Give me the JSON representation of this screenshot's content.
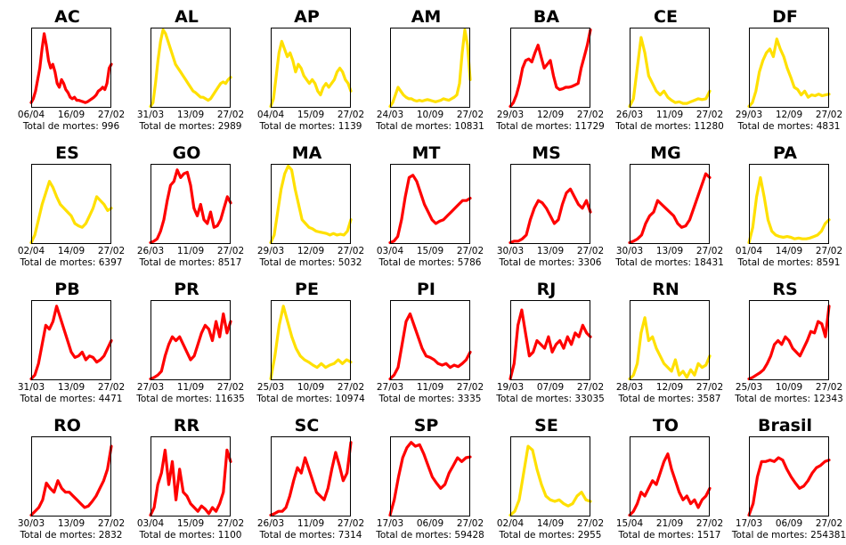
{
  "chart_data": {
    "type": "line",
    "total_prefix": "Total de mortes: ",
    "colors": {
      "red": "#ff0000",
      "yellow": "#ffe000"
    },
    "panels": [
      {
        "title": "AC",
        "xticks": [
          "06/04",
          "16/09",
          "27/02"
        ],
        "total": "996",
        "color": "red",
        "y": [
          0.05,
          0.1,
          0.2,
          0.35,
          0.5,
          0.75,
          0.95,
          0.8,
          0.6,
          0.5,
          0.55,
          0.45,
          0.3,
          0.25,
          0.35,
          0.3,
          0.22,
          0.18,
          0.12,
          0.1,
          0.12,
          0.08,
          0.08,
          0.07,
          0.06,
          0.05,
          0.06,
          0.08,
          0.1,
          0.12,
          0.15,
          0.2,
          0.22,
          0.25,
          0.22,
          0.3,
          0.5,
          0.55
        ]
      },
      {
        "title": "AL",
        "xticks": [
          "31/03",
          "13/09",
          "27/02"
        ],
        "total": "2989",
        "color": "yellow",
        "y": [
          0.0,
          0.05,
          0.3,
          0.6,
          0.85,
          1.0,
          0.95,
          0.85,
          0.75,
          0.65,
          0.55,
          0.5,
          0.45,
          0.4,
          0.35,
          0.3,
          0.25,
          0.2,
          0.18,
          0.15,
          0.12,
          0.12,
          0.1,
          0.08,
          0.1,
          0.15,
          0.2,
          0.25,
          0.3,
          0.32,
          0.3,
          0.35,
          0.38
        ]
      },
      {
        "title": "AP",
        "xticks": [
          "04/04",
          "15/09",
          "27/02"
        ],
        "total": "1139",
        "color": "yellow",
        "y": [
          0.0,
          0.1,
          0.4,
          0.7,
          0.85,
          0.75,
          0.65,
          0.7,
          0.6,
          0.45,
          0.55,
          0.5,
          0.4,
          0.35,
          0.3,
          0.35,
          0.3,
          0.2,
          0.15,
          0.25,
          0.3,
          0.25,
          0.3,
          0.35,
          0.45,
          0.5,
          0.45,
          0.35,
          0.3,
          0.2
        ]
      },
      {
        "title": "AM",
        "xticks": [
          "24/03",
          "10/09",
          "27/02"
        ],
        "total": "10831",
        "color": "yellow",
        "y": [
          0.0,
          0.05,
          0.15,
          0.25,
          0.2,
          0.15,
          0.12,
          0.1,
          0.1,
          0.08,
          0.07,
          0.08,
          0.07,
          0.08,
          0.09,
          0.08,
          0.07,
          0.06,
          0.07,
          0.08,
          0.1,
          0.09,
          0.08,
          0.1,
          0.12,
          0.15,
          0.3,
          0.7,
          1.0,
          0.8,
          0.35
        ]
      },
      {
        "title": "BA",
        "xticks": [
          "29/03",
          "12/09",
          "27/02"
        ],
        "total": "11729",
        "color": "red",
        "y": [
          0.0,
          0.05,
          0.15,
          0.3,
          0.5,
          0.6,
          0.62,
          0.58,
          0.7,
          0.8,
          0.65,
          0.5,
          0.55,
          0.6,
          0.4,
          0.25,
          0.22,
          0.23,
          0.25,
          0.25,
          0.26,
          0.28,
          0.3,
          0.5,
          0.65,
          0.8,
          1.0
        ]
      },
      {
        "title": "CE",
        "xticks": [
          "26/03",
          "11/09",
          "27/02"
        ],
        "total": "11280",
        "color": "yellow",
        "y": [
          0.0,
          0.1,
          0.5,
          0.9,
          0.7,
          0.4,
          0.3,
          0.2,
          0.15,
          0.2,
          0.12,
          0.08,
          0.05,
          0.06,
          0.04,
          0.04,
          0.06,
          0.08,
          0.1,
          0.09,
          0.1,
          0.2
        ]
      },
      {
        "title": "DF",
        "xticks": [
          "29/03",
          "12/09",
          "27/02"
        ],
        "total": "4831",
        "color": "yellow",
        "y": [
          0.0,
          0.05,
          0.2,
          0.45,
          0.6,
          0.7,
          0.75,
          0.65,
          0.88,
          0.75,
          0.65,
          0.5,
          0.38,
          0.25,
          0.22,
          0.15,
          0.2,
          0.12,
          0.15,
          0.14,
          0.16,
          0.14,
          0.15,
          0.16
        ]
      },
      {
        "title": "ES",
        "xticks": [
          "02/04",
          "14/09",
          "27/02"
        ],
        "total": "6397",
        "color": "yellow",
        "y": [
          0.0,
          0.1,
          0.3,
          0.5,
          0.65,
          0.8,
          0.72,
          0.6,
          0.5,
          0.45,
          0.4,
          0.35,
          0.25,
          0.22,
          0.2,
          0.25,
          0.35,
          0.45,
          0.6,
          0.55,
          0.5,
          0.42,
          0.45
        ]
      },
      {
        "title": "GO",
        "xticks": [
          "26/03",
          "11/09",
          "27/02"
        ],
        "total": "8517",
        "color": "red",
        "y": [
          0.0,
          0.02,
          0.05,
          0.15,
          0.3,
          0.55,
          0.75,
          0.8,
          0.95,
          0.85,
          0.9,
          0.92,
          0.75,
          0.45,
          0.35,
          0.5,
          0.3,
          0.25,
          0.4,
          0.2,
          0.22,
          0.3,
          0.45,
          0.6,
          0.52
        ]
      },
      {
        "title": "MA",
        "xticks": [
          "29/03",
          "12/09",
          "27/02"
        ],
        "total": "5032",
        "color": "yellow",
        "y": [
          0.0,
          0.1,
          0.4,
          0.7,
          0.9,
          1.0,
          0.95,
          0.7,
          0.5,
          0.3,
          0.25,
          0.2,
          0.18,
          0.15,
          0.14,
          0.13,
          0.12,
          0.1,
          0.12,
          0.1,
          0.11,
          0.1,
          0.15,
          0.3
        ]
      },
      {
        "title": "MT",
        "xticks": [
          "03/04",
          "15/09",
          "27/02"
        ],
        "total": "5786",
        "color": "red",
        "y": [
          0.0,
          0.02,
          0.08,
          0.3,
          0.6,
          0.85,
          0.88,
          0.8,
          0.65,
          0.5,
          0.4,
          0.3,
          0.25,
          0.28,
          0.3,
          0.35,
          0.4,
          0.45,
          0.5,
          0.55,
          0.55,
          0.58
        ]
      },
      {
        "title": "MS",
        "xticks": [
          "30/03",
          "13/09",
          "27/02"
        ],
        "total": "3306",
        "color": "red",
        "y": [
          0.0,
          0.02,
          0.02,
          0.05,
          0.1,
          0.3,
          0.45,
          0.55,
          0.52,
          0.45,
          0.35,
          0.25,
          0.3,
          0.5,
          0.65,
          0.7,
          0.6,
          0.5,
          0.45,
          0.55,
          0.4
        ]
      },
      {
        "title": "MG",
        "xticks": [
          "30/03",
          "13/09",
          "27/02"
        ],
        "total": "18431",
        "color": "red",
        "y": [
          0.0,
          0.02,
          0.05,
          0.1,
          0.25,
          0.35,
          0.4,
          0.55,
          0.5,
          0.45,
          0.4,
          0.35,
          0.25,
          0.2,
          0.22,
          0.3,
          0.45,
          0.6,
          0.75,
          0.9,
          0.85
        ]
      },
      {
        "title": "PA",
        "xticks": [
          "01/04",
          "14/09",
          "27/02"
        ],
        "total": "8591",
        "color": "yellow",
        "y": [
          0.0,
          0.2,
          0.6,
          0.85,
          0.6,
          0.3,
          0.15,
          0.1,
          0.08,
          0.07,
          0.08,
          0.07,
          0.05,
          0.06,
          0.05,
          0.05,
          0.06,
          0.08,
          0.1,
          0.15,
          0.25,
          0.3
        ]
      },
      {
        "title": "PB",
        "xticks": [
          "31/03",
          "13/09",
          "27/02"
        ],
        "total": "4471",
        "color": "red",
        "y": [
          0.0,
          0.05,
          0.2,
          0.45,
          0.7,
          0.65,
          0.75,
          0.95,
          0.8,
          0.65,
          0.5,
          0.35,
          0.28,
          0.3,
          0.35,
          0.25,
          0.3,
          0.28,
          0.22,
          0.25,
          0.3,
          0.4,
          0.5
        ]
      },
      {
        "title": "PR",
        "xticks": [
          "27/03",
          "11/09",
          "27/02"
        ],
        "total": "11635",
        "color": "red",
        "y": [
          0.0,
          0.02,
          0.05,
          0.1,
          0.3,
          0.45,
          0.55,
          0.5,
          0.55,
          0.45,
          0.35,
          0.25,
          0.3,
          0.45,
          0.6,
          0.7,
          0.65,
          0.5,
          0.75,
          0.55,
          0.85,
          0.6,
          0.75
        ]
      },
      {
        "title": "PE",
        "xticks": [
          "25/03",
          "10/09",
          "27/02"
        ],
        "total": "10974",
        "color": "yellow",
        "y": [
          0.0,
          0.3,
          0.7,
          0.95,
          0.75,
          0.55,
          0.4,
          0.3,
          0.25,
          0.22,
          0.18,
          0.15,
          0.2,
          0.15,
          0.18,
          0.2,
          0.25,
          0.2,
          0.25,
          0.22
        ]
      },
      {
        "title": "PI",
        "xticks": [
          "27/03",
          "11/09",
          "27/02"
        ],
        "total": "3335",
        "color": "red",
        "y": [
          0.0,
          0.05,
          0.15,
          0.45,
          0.75,
          0.85,
          0.7,
          0.55,
          0.4,
          0.3,
          0.28,
          0.25,
          0.2,
          0.18,
          0.2,
          0.15,
          0.18,
          0.16,
          0.2,
          0.25,
          0.35
        ]
      },
      {
        "title": "RJ",
        "xticks": [
          "19/03",
          "07/09",
          "27/02"
        ],
        "total": "33035",
        "color": "red",
        "y": [
          0.0,
          0.2,
          0.7,
          0.9,
          0.6,
          0.3,
          0.35,
          0.5,
          0.45,
          0.4,
          0.55,
          0.35,
          0.45,
          0.5,
          0.4,
          0.55,
          0.45,
          0.6,
          0.55,
          0.7,
          0.6,
          0.55
        ]
      },
      {
        "title": "RN",
        "xticks": [
          "28/03",
          "12/09",
          "27/02"
        ],
        "total": "3587",
        "color": "yellow",
        "y": [
          0.0,
          0.05,
          0.2,
          0.6,
          0.8,
          0.5,
          0.55,
          0.4,
          0.3,
          0.2,
          0.15,
          0.1,
          0.25,
          0.05,
          0.1,
          0.02,
          0.12,
          0.05,
          0.2,
          0.15,
          0.18,
          0.3
        ]
      },
      {
        "title": "RS",
        "xticks": [
          "25/03",
          "10/09",
          "27/02"
        ],
        "total": "12343",
        "color": "red",
        "y": [
          0.0,
          0.02,
          0.05,
          0.08,
          0.12,
          0.2,
          0.3,
          0.45,
          0.5,
          0.45,
          0.55,
          0.5,
          0.4,
          0.35,
          0.3,
          0.4,
          0.5,
          0.62,
          0.6,
          0.75,
          0.72,
          0.55,
          0.95
        ]
      },
      {
        "title": "RO",
        "xticks": [
          "30/03",
          "13/09",
          "27/02"
        ],
        "total": "2832",
        "color": "red",
        "y": [
          0.0,
          0.05,
          0.1,
          0.2,
          0.42,
          0.35,
          0.3,
          0.45,
          0.35,
          0.3,
          0.3,
          0.25,
          0.2,
          0.15,
          0.1,
          0.12,
          0.18,
          0.25,
          0.35,
          0.45,
          0.6,
          0.9
        ]
      },
      {
        "title": "RR",
        "xticks": [
          "03/04",
          "15/09",
          "27/02"
        ],
        "total": "1100",
        "color": "red",
        "y": [
          0.0,
          0.1,
          0.4,
          0.55,
          0.85,
          0.4,
          0.7,
          0.2,
          0.6,
          0.3,
          0.25,
          0.15,
          0.1,
          0.05,
          0.12,
          0.08,
          0.02,
          0.1,
          0.05,
          0.15,
          0.3,
          0.85,
          0.7
        ]
      },
      {
        "title": "SC",
        "xticks": [
          "26/03",
          "11/09",
          "27/02"
        ],
        "total": "7314",
        "color": "red",
        "y": [
          0.0,
          0.02,
          0.05,
          0.05,
          0.1,
          0.25,
          0.45,
          0.62,
          0.55,
          0.75,
          0.6,
          0.45,
          0.3,
          0.25,
          0.2,
          0.35,
          0.6,
          0.82,
          0.65,
          0.45,
          0.55,
          0.95
        ]
      },
      {
        "title": "SP",
        "xticks": [
          "17/03",
          "06/09",
          "27/02"
        ],
        "total": "59428",
        "color": "red",
        "y": [
          0.0,
          0.2,
          0.5,
          0.75,
          0.88,
          0.95,
          0.9,
          0.92,
          0.8,
          0.65,
          0.5,
          0.42,
          0.35,
          0.4,
          0.55,
          0.65,
          0.75,
          0.7,
          0.75,
          0.76
        ]
      },
      {
        "title": "SE",
        "xticks": [
          "02/04",
          "14/09",
          "27/02"
        ],
        "total": "2955",
        "color": "yellow",
        "y": [
          0.0,
          0.05,
          0.2,
          0.55,
          0.9,
          0.85,
          0.6,
          0.4,
          0.25,
          0.2,
          0.18,
          0.2,
          0.15,
          0.12,
          0.15,
          0.25,
          0.3,
          0.2,
          0.18
        ]
      },
      {
        "title": "TO",
        "xticks": [
          "15/04",
          "21/09",
          "27/02"
        ],
        "total": "1517",
        "color": "red",
        "y": [
          0.0,
          0.05,
          0.15,
          0.3,
          0.25,
          0.35,
          0.45,
          0.4,
          0.55,
          0.7,
          0.8,
          0.6,
          0.45,
          0.3,
          0.2,
          0.25,
          0.15,
          0.2,
          0.1,
          0.2,
          0.25,
          0.35
        ]
      },
      {
        "title": "Brasil",
        "xticks": [
          "17/03",
          "06/09",
          "27/02"
        ],
        "total": "254381",
        "color": "red",
        "y": [
          0.0,
          0.15,
          0.5,
          0.7,
          0.7,
          0.72,
          0.7,
          0.75,
          0.72,
          0.6,
          0.5,
          0.42,
          0.35,
          0.38,
          0.45,
          0.55,
          0.62,
          0.65,
          0.7,
          0.72
        ]
      }
    ]
  }
}
